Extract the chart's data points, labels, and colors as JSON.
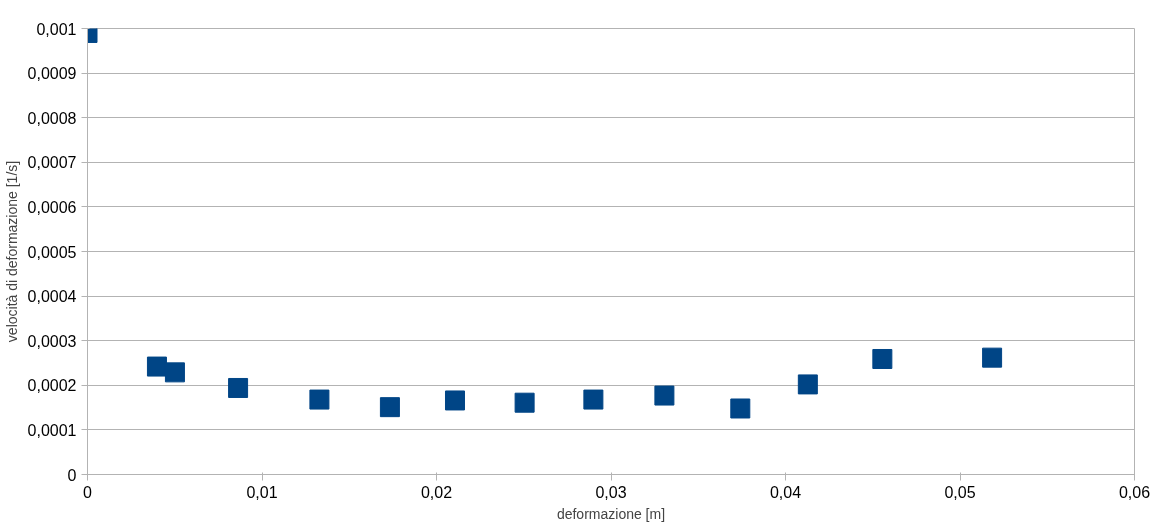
{
  "chart_data": {
    "type": "scatter",
    "xlabel": "deformazione [m]",
    "ylabel": "velocità di deformazione [1/s]",
    "x": [
      0,
      0.00398,
      0.00501,
      0.00863,
      0.01329,
      0.01733,
      0.02106,
      0.02505,
      0.02899,
      0.03306,
      0.03741,
      0.04128,
      0.04555,
      0.05184
    ],
    "series": [
      {
        "color": "#004586",
        "values": [
          0.00099,
          0.000242,
          0.000229,
          0.000194,
          0.000168,
          0.000151,
          0.000166,
          0.000161,
          0.000168,
          0.000177,
          0.000148,
          0.000202,
          0.000259,
          0.000262
        ]
      }
    ],
    "xlim": [
      0,
      0.06
    ],
    "ylim": [
      0,
      0.001
    ],
    "xticks": [
      0,
      {
        "value": 0.01,
        "label": "0,01"
      },
      {
        "value": 0.02,
        "label": "0,02"
      },
      {
        "value": 0.03,
        "label": "0,03"
      },
      {
        "value": 0.04,
        "label": "0,04"
      },
      {
        "value": 0.05,
        "label": "0,05"
      },
      {
        "value": 0.06,
        "label": "0,06"
      }
    ],
    "yticks": [
      0,
      {
        "value": 0.0001,
        "label": "0,0001"
      },
      {
        "value": 0.0002,
        "label": "0,0002"
      },
      {
        "value": 0.0003,
        "label": "0,0003"
      },
      {
        "value": 0.0004,
        "label": "0,0004"
      },
      {
        "value": 0.0005,
        "label": "0,0005"
      },
      {
        "value": 0.0006,
        "label": "0,0006"
      },
      {
        "value": 0.0007,
        "label": "0,0007"
      },
      {
        "value": 0.0008,
        "label": "0,0008"
      },
      {
        "value": 0.0009,
        "label": "0,0009"
      },
      {
        "value": 0.001,
        "label": "0,001"
      }
    ],
    "grid": "y",
    "marker": "square"
  }
}
